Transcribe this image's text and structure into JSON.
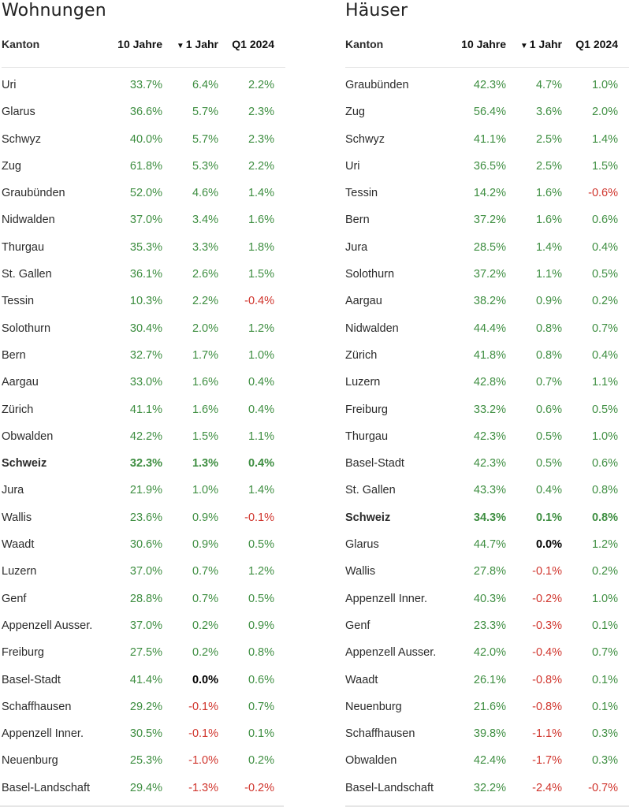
{
  "colors": {
    "positive": "#3e8e41",
    "negative": "#d0342c",
    "zero": "#000000"
  },
  "tables": [
    {
      "title": "Wohnungen",
      "headers": {
        "name": "Kanton",
        "y10": "10 Jahre",
        "y1": "1 Jahr",
        "q1": "Q1 2024",
        "sort_icon": "▼"
      },
      "rows": [
        {
          "name": "Uri",
          "y10": "33.7%",
          "y1": "6.4%",
          "q1": "2.2%"
        },
        {
          "name": "Glarus",
          "y10": "36.6%",
          "y1": "5.7%",
          "q1": "2.3%"
        },
        {
          "name": "Schwyz",
          "y10": "40.0%",
          "y1": "5.7%",
          "q1": "2.3%"
        },
        {
          "name": "Zug",
          "y10": "61.8%",
          "y1": "5.3%",
          "q1": "2.2%"
        },
        {
          "name": "Graubünden",
          "y10": "52.0%",
          "y1": "4.6%",
          "q1": "1.4%"
        },
        {
          "name": "Nidwalden",
          "y10": "37.0%",
          "y1": "3.4%",
          "q1": "1.6%"
        },
        {
          "name": "Thurgau",
          "y10": "35.3%",
          "y1": "3.3%",
          "q1": "1.8%"
        },
        {
          "name": "St. Gallen",
          "y10": "36.1%",
          "y1": "2.6%",
          "q1": "1.5%"
        },
        {
          "name": "Tessin",
          "y10": "10.3%",
          "y1": "2.2%",
          "q1": "-0.4%"
        },
        {
          "name": "Solothurn",
          "y10": "30.4%",
          "y1": "2.0%",
          "q1": "1.2%"
        },
        {
          "name": "Bern",
          "y10": "32.7%",
          "y1": "1.7%",
          "q1": "1.0%"
        },
        {
          "name": "Aargau",
          "y10": "33.0%",
          "y1": "1.6%",
          "q1": "0.4%"
        },
        {
          "name": "Zürich",
          "y10": "41.1%",
          "y1": "1.6%",
          "q1": "0.4%"
        },
        {
          "name": "Obwalden",
          "y10": "42.2%",
          "y1": "1.5%",
          "q1": "1.1%"
        },
        {
          "name": "Schweiz",
          "y10": "32.3%",
          "y1": "1.3%",
          "q1": "0.4%",
          "bold": true
        },
        {
          "name": "Jura",
          "y10": "21.9%",
          "y1": "1.0%",
          "q1": "1.4%"
        },
        {
          "name": "Wallis",
          "y10": "23.6%",
          "y1": "0.9%",
          "q1": "-0.1%"
        },
        {
          "name": "Waadt",
          "y10": "30.6%",
          "y1": "0.9%",
          "q1": "0.5%"
        },
        {
          "name": "Luzern",
          "y10": "37.0%",
          "y1": "0.7%",
          "q1": "1.2%"
        },
        {
          "name": "Genf",
          "y10": "28.8%",
          "y1": "0.7%",
          "q1": "0.5%"
        },
        {
          "name": "Appenzell Ausser.",
          "y10": "37.0%",
          "y1": "0.2%",
          "q1": "0.9%"
        },
        {
          "name": "Freiburg",
          "y10": "27.5%",
          "y1": "0.2%",
          "q1": "0.8%"
        },
        {
          "name": "Basel-Stadt",
          "y10": "41.4%",
          "y1": "0.0%",
          "q1": "0.6%"
        },
        {
          "name": "Schaffhausen",
          "y10": "29.2%",
          "y1": "-0.1%",
          "q1": "0.7%"
        },
        {
          "name": "Appenzell Inner.",
          "y10": "30.5%",
          "y1": "-0.1%",
          "q1": "0.1%"
        },
        {
          "name": "Neuenburg",
          "y10": "25.3%",
          "y1": "-1.0%",
          "q1": "0.2%"
        },
        {
          "name": "Basel-Landschaft",
          "y10": "29.4%",
          "y1": "-1.3%",
          "q1": "-0.2%"
        }
      ]
    },
    {
      "title": "Häuser",
      "headers": {
        "name": "Kanton",
        "y10": "10 Jahre",
        "y1": "1 Jahr",
        "q1": "Q1 2024",
        "sort_icon": "▼"
      },
      "rows": [
        {
          "name": "Graubünden",
          "y10": "42.3%",
          "y1": "4.7%",
          "q1": "1.0%"
        },
        {
          "name": "Zug",
          "y10": "56.4%",
          "y1": "3.6%",
          "q1": "2.0%"
        },
        {
          "name": "Schwyz",
          "y10": "41.1%",
          "y1": "2.5%",
          "q1": "1.4%"
        },
        {
          "name": "Uri",
          "y10": "36.5%",
          "y1": "2.5%",
          "q1": "1.5%"
        },
        {
          "name": "Tessin",
          "y10": "14.2%",
          "y1": "1.6%",
          "q1": "-0.6%"
        },
        {
          "name": "Bern",
          "y10": "37.2%",
          "y1": "1.6%",
          "q1": "0.6%"
        },
        {
          "name": "Jura",
          "y10": "28.5%",
          "y1": "1.4%",
          "q1": "0.4%"
        },
        {
          "name": "Solothurn",
          "y10": "37.2%",
          "y1": "1.1%",
          "q1": "0.5%"
        },
        {
          "name": "Aargau",
          "y10": "38.2%",
          "y1": "0.9%",
          "q1": "0.2%"
        },
        {
          "name": "Nidwalden",
          "y10": "44.4%",
          "y1": "0.8%",
          "q1": "0.7%"
        },
        {
          "name": "Zürich",
          "y10": "41.8%",
          "y1": "0.8%",
          "q1": "0.4%"
        },
        {
          "name": "Luzern",
          "y10": "42.8%",
          "y1": "0.7%",
          "q1": "1.1%"
        },
        {
          "name": "Freiburg",
          "y10": "33.2%",
          "y1": "0.6%",
          "q1": "0.5%"
        },
        {
          "name": "Thurgau",
          "y10": "42.3%",
          "y1": "0.5%",
          "q1": "1.0%"
        },
        {
          "name": "Basel-Stadt",
          "y10": "42.3%",
          "y1": "0.5%",
          "q1": "0.6%"
        },
        {
          "name": "St. Gallen",
          "y10": "43.3%",
          "y1": "0.4%",
          "q1": "0.8%"
        },
        {
          "name": "Schweiz",
          "y10": "34.3%",
          "y1": "0.1%",
          "q1": "0.8%",
          "bold": true
        },
        {
          "name": "Glarus",
          "y10": "44.7%",
          "y1": "0.0%",
          "q1": "1.2%"
        },
        {
          "name": "Wallis",
          "y10": "27.8%",
          "y1": "-0.1%",
          "q1": "0.2%"
        },
        {
          "name": "Appenzell Inner.",
          "y10": "40.3%",
          "y1": "-0.2%",
          "q1": "1.0%"
        },
        {
          "name": "Genf",
          "y10": "23.3%",
          "y1": "-0.3%",
          "q1": "0.1%"
        },
        {
          "name": "Appenzell Ausser.",
          "y10": "42.0%",
          "y1": "-0.4%",
          "q1": "0.7%"
        },
        {
          "name": "Waadt",
          "y10": "26.1%",
          "y1": "-0.8%",
          "q1": "0.1%"
        },
        {
          "name": "Neuenburg",
          "y10": "21.6%",
          "y1": "-0.8%",
          "q1": "0.1%"
        },
        {
          "name": "Schaffhausen",
          "y10": "39.8%",
          "y1": "-1.1%",
          "q1": "0.3%"
        },
        {
          "name": "Obwalden",
          "y10": "42.4%",
          "y1": "-1.7%",
          "q1": "0.3%"
        },
        {
          "name": "Basel-Landschaft",
          "y10": "32.2%",
          "y1": "-2.4%",
          "q1": "-0.7%"
        }
      ]
    }
  ]
}
